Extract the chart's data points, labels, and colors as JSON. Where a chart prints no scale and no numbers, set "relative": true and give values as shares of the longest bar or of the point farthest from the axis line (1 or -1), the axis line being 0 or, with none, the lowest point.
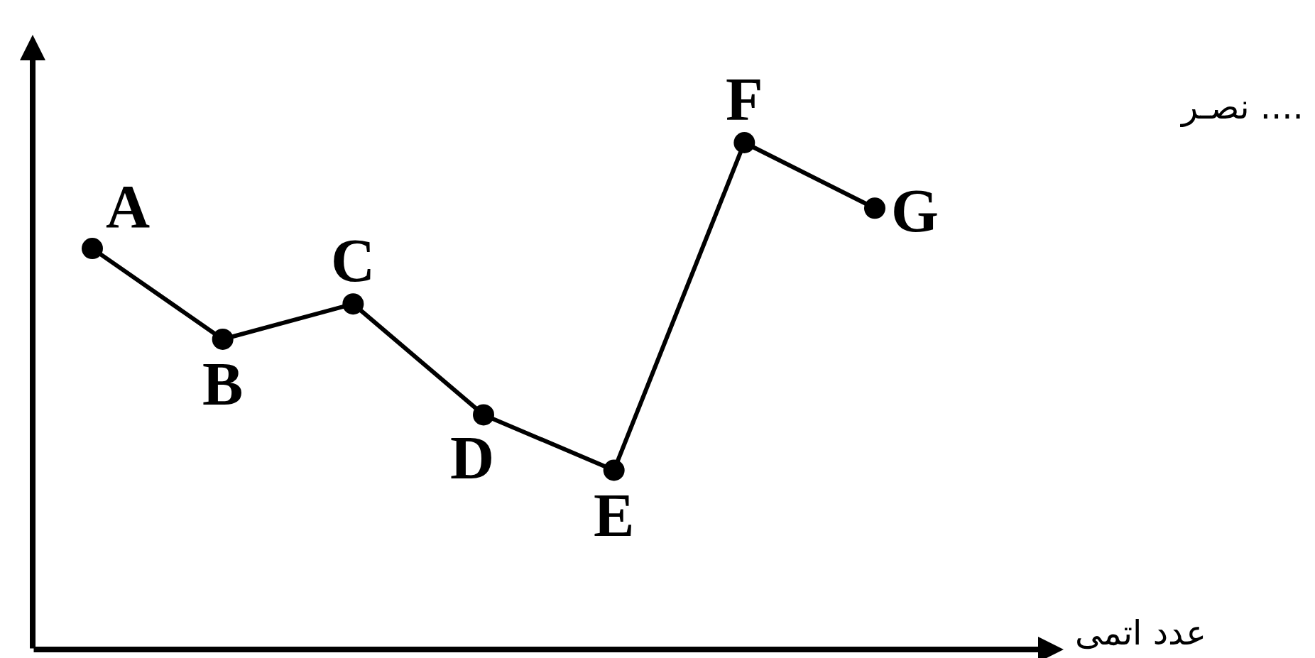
{
  "chart_data": {
    "type": "line",
    "relative": true,
    "categories": [
      null,
      null,
      null,
      null,
      null,
      null,
      null
    ],
    "series": [
      {
        "color": "#000000",
        "values": [
          0.79,
          0.61,
          0.68,
          0.46,
          0.35,
          1,
          0.87
        ]
      }
    ],
    "xlabel": "عدد اتمی",
    "annotations": [
      "A",
      "B",
      "C",
      "D",
      "E",
      "F",
      "G",
      "نصـر ...."
    ],
    "marker": "circle",
    "line_style": "solid"
  }
}
